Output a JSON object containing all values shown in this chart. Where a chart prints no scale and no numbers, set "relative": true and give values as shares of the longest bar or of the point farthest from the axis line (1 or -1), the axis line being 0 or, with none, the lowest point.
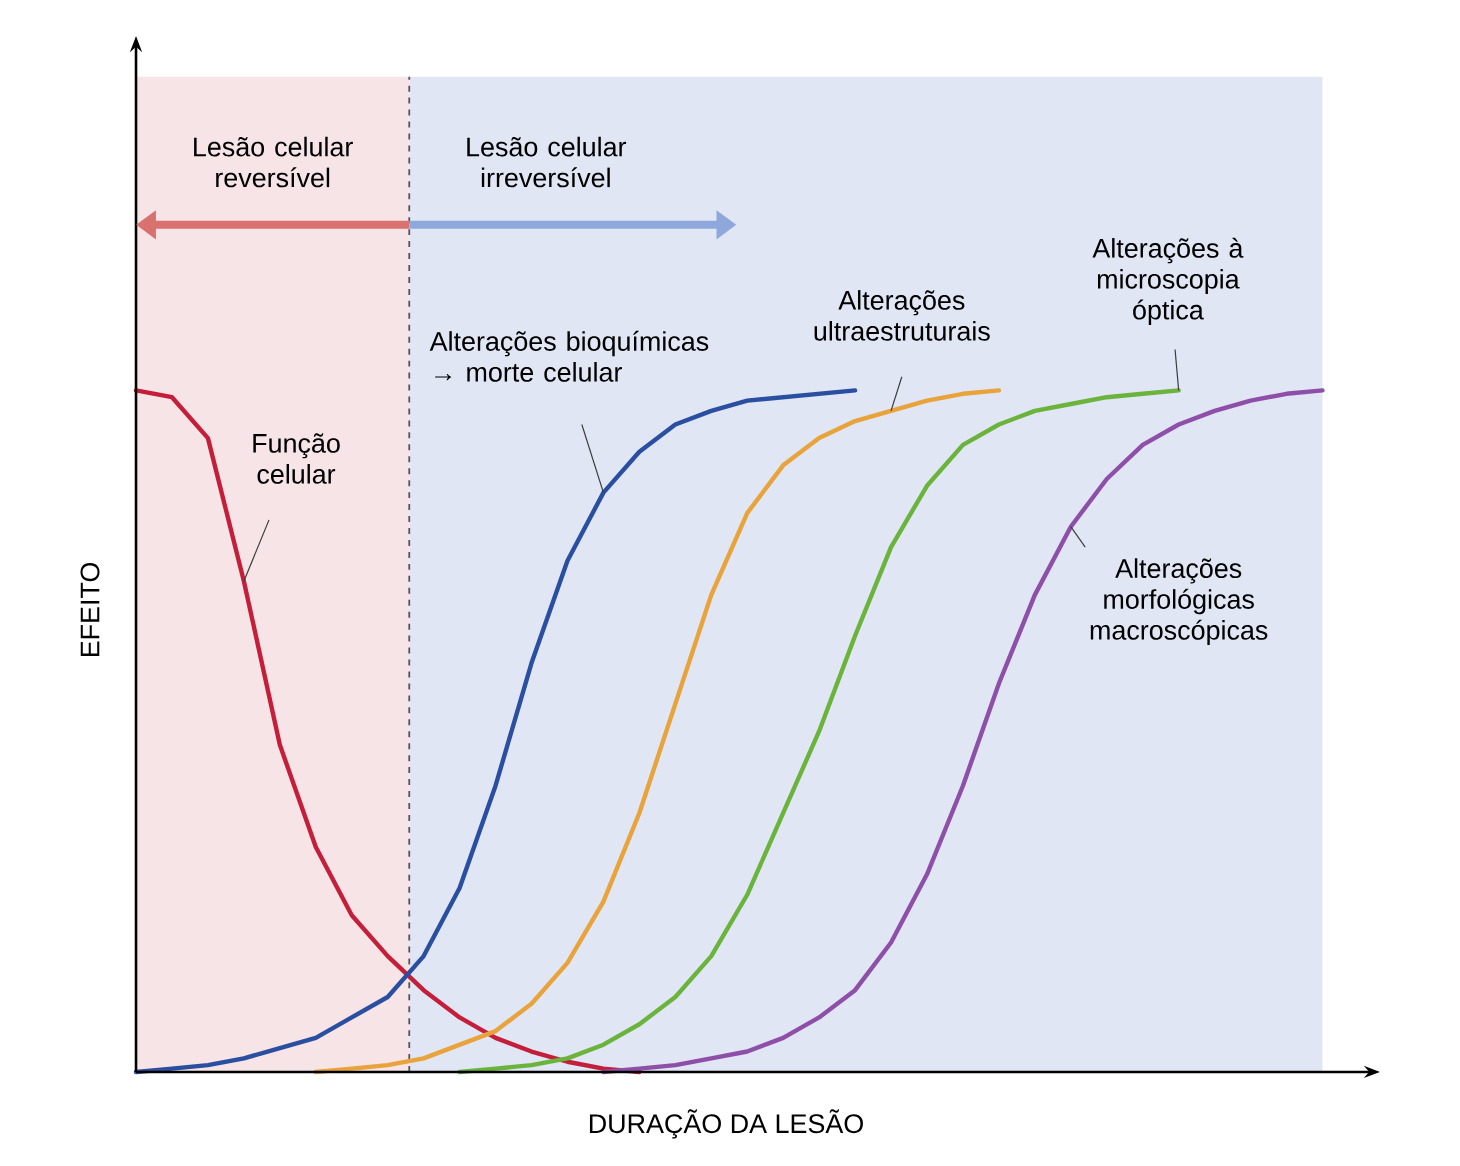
{
  "chart_data": {
    "type": "line",
    "relative": true,
    "xlabel": "DURAÇÃO DA LESÃO",
    "ylabel": "EFEITO",
    "categories": [
      null,
      null,
      null,
      null,
      null,
      null,
      null,
      null,
      null,
      null,
      null,
      null,
      null,
      null,
      null,
      null,
      null,
      null,
      null,
      null,
      null,
      null,
      null,
      null,
      null,
      null,
      null,
      null,
      null,
      null,
      null,
      null,
      null,
      null
    ],
    "series": [
      {
        "name": "Função celular",
        "color": "#c41e3a",
        "values": [
          1,
          0.99,
          0.93,
          0.72,
          0.48,
          0.33,
          0.23,
          0.17,
          0.12,
          0.08,
          0.05,
          0.03,
          0.015,
          0.005,
          0,
          null,
          null,
          null,
          null,
          null,
          null,
          null,
          null,
          null,
          null,
          null,
          null,
          null,
          null,
          null,
          null,
          null,
          null,
          null
        ]
      },
      {
        "name": "Alterações bioquímicas → morte celular",
        "color": "#2a4fa0",
        "values": [
          0,
          0.005,
          0.01,
          0.02,
          0.035,
          0.05,
          0.08,
          0.11,
          0.17,
          0.27,
          0.42,
          0.6,
          0.75,
          0.85,
          0.91,
          0.95,
          0.97,
          0.985,
          0.99,
          0.995,
          1,
          null,
          null,
          null,
          null,
          null,
          null,
          null,
          null,
          null,
          null,
          null,
          null,
          null
        ]
      },
      {
        "name": "Alterações ultraestruturais",
        "color": "#e8a33a",
        "values": [
          null,
          null,
          null,
          null,
          null,
          0,
          0.005,
          0.01,
          0.02,
          0.04,
          0.06,
          0.1,
          0.16,
          0.25,
          0.38,
          0.54,
          0.7,
          0.82,
          0.89,
          0.93,
          0.955,
          0.97,
          0.985,
          0.995,
          1,
          null,
          null,
          null,
          null,
          null,
          null,
          null,
          null,
          null
        ]
      },
      {
        "name": "Alterações à microscopia óptica",
        "color": "#6ab43c",
        "values": [
          null,
          null,
          null,
          null,
          null,
          null,
          null,
          null,
          null,
          0,
          0.005,
          0.01,
          0.02,
          0.04,
          0.07,
          0.11,
          0.17,
          0.26,
          0.38,
          0.5,
          0.64,
          0.77,
          0.86,
          0.92,
          0.95,
          0.97,
          0.98,
          0.99,
          0.995,
          1,
          null,
          null,
          null,
          null
        ]
      },
      {
        "name": "Alterações morfológicas macroscópicas",
        "color": "#8e4fa8",
        "values": [
          null,
          null,
          null,
          null,
          null,
          null,
          null,
          null,
          null,
          null,
          null,
          null,
          null,
          0,
          0.005,
          0.01,
          0.02,
          0.03,
          0.05,
          0.08,
          0.12,
          0.19,
          0.29,
          0.42,
          0.57,
          0.7,
          0.8,
          0.87,
          0.92,
          0.95,
          0.97,
          0.985,
          0.995,
          1
        ]
      }
    ],
    "annotations": [
      "Lesão celular reversível",
      "Lesão celular irreversível"
    ]
  }
}
